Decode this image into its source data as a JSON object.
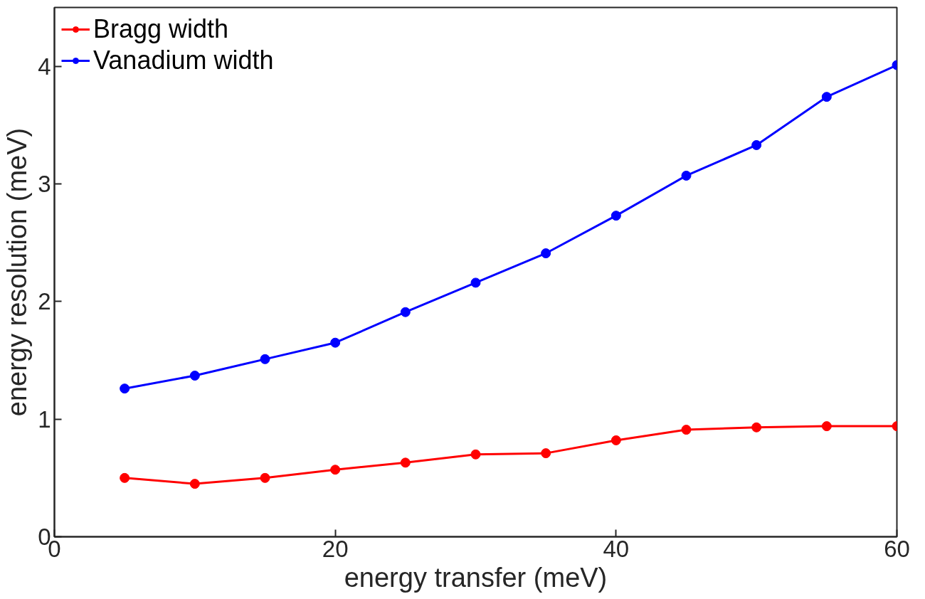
{
  "chart_data": {
    "type": "line",
    "xlabel": "energy transfer (meV)",
    "ylabel": "energy resolution (meV)",
    "x": [
      5,
      10,
      15,
      20,
      25,
      30,
      35,
      40,
      45,
      50,
      55,
      60
    ],
    "series": [
      {
        "name": "Bragg width",
        "color": "#ff0000",
        "values": [
          0.5,
          0.45,
          0.5,
          0.57,
          0.63,
          0.7,
          0.71,
          0.82,
          0.91,
          0.93,
          0.94,
          0.94
        ]
      },
      {
        "name": "Vanadium width",
        "color": "#0000ff",
        "values": [
          1.26,
          1.37,
          1.51,
          1.65,
          1.91,
          2.16,
          2.41,
          2.73,
          3.07,
          3.33,
          3.74,
          4.01
        ]
      }
    ],
    "xlim": [
      0,
      60
    ],
    "ylim": [
      0,
      4.5
    ],
    "xticks": [
      0,
      20,
      40,
      60
    ],
    "yticks": [
      0,
      1,
      2,
      3,
      4
    ],
    "grid": false,
    "legend": "top left",
    "marker": "circle",
    "line_style": "solid"
  }
}
